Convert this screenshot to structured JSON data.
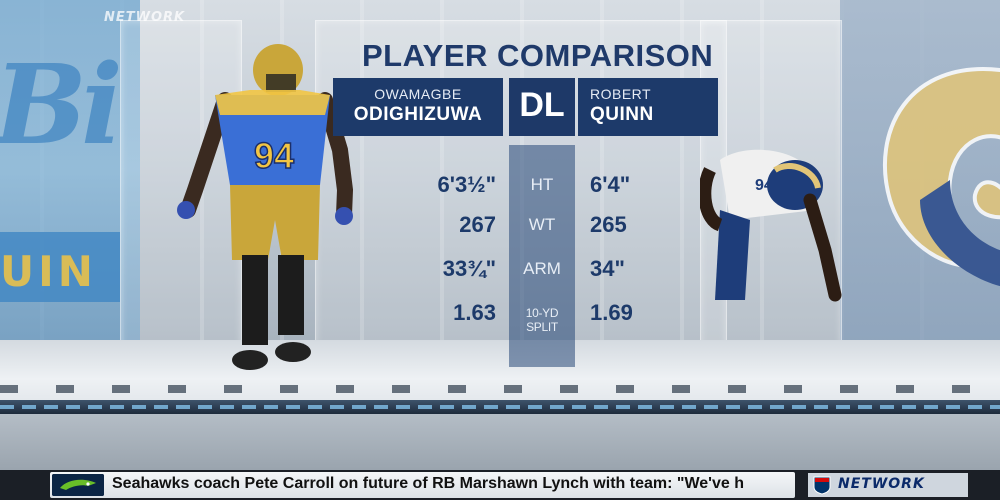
{
  "watermark": "NETWORK",
  "graphic": {
    "title": "PLAYER COMPARISON",
    "position": "DL",
    "player_left": {
      "first": "OWAMAGBE",
      "last": "ODIGHIZUWA",
      "jersey": "94"
    },
    "player_right": {
      "first": "ROBERT",
      "last": "QUINN",
      "jersey": "94"
    },
    "stats": [
      {
        "label": "HT",
        "left": "6'3½\"",
        "right": "6'4\""
      },
      {
        "label": "WT",
        "left": "267",
        "right": "265"
      },
      {
        "label": "ARM",
        "left": "33¾\"",
        "right": "34\""
      },
      {
        "label": "10-YD SPLIT",
        "left": "1.63",
        "right": "1.69"
      }
    ]
  },
  "ticker": {
    "text": "Seahawks coach Pete Carroll on future of RB Marshawn Lynch with team: \"We've h",
    "network": "NETWORK"
  },
  "colors": {
    "navy": "#1d3a6a",
    "ucla_blue": "#3d83c1",
    "ucla_gold": "#f2c544",
    "rams_blue": "#1e3d7a",
    "rams_gold": "#d8b766"
  }
}
